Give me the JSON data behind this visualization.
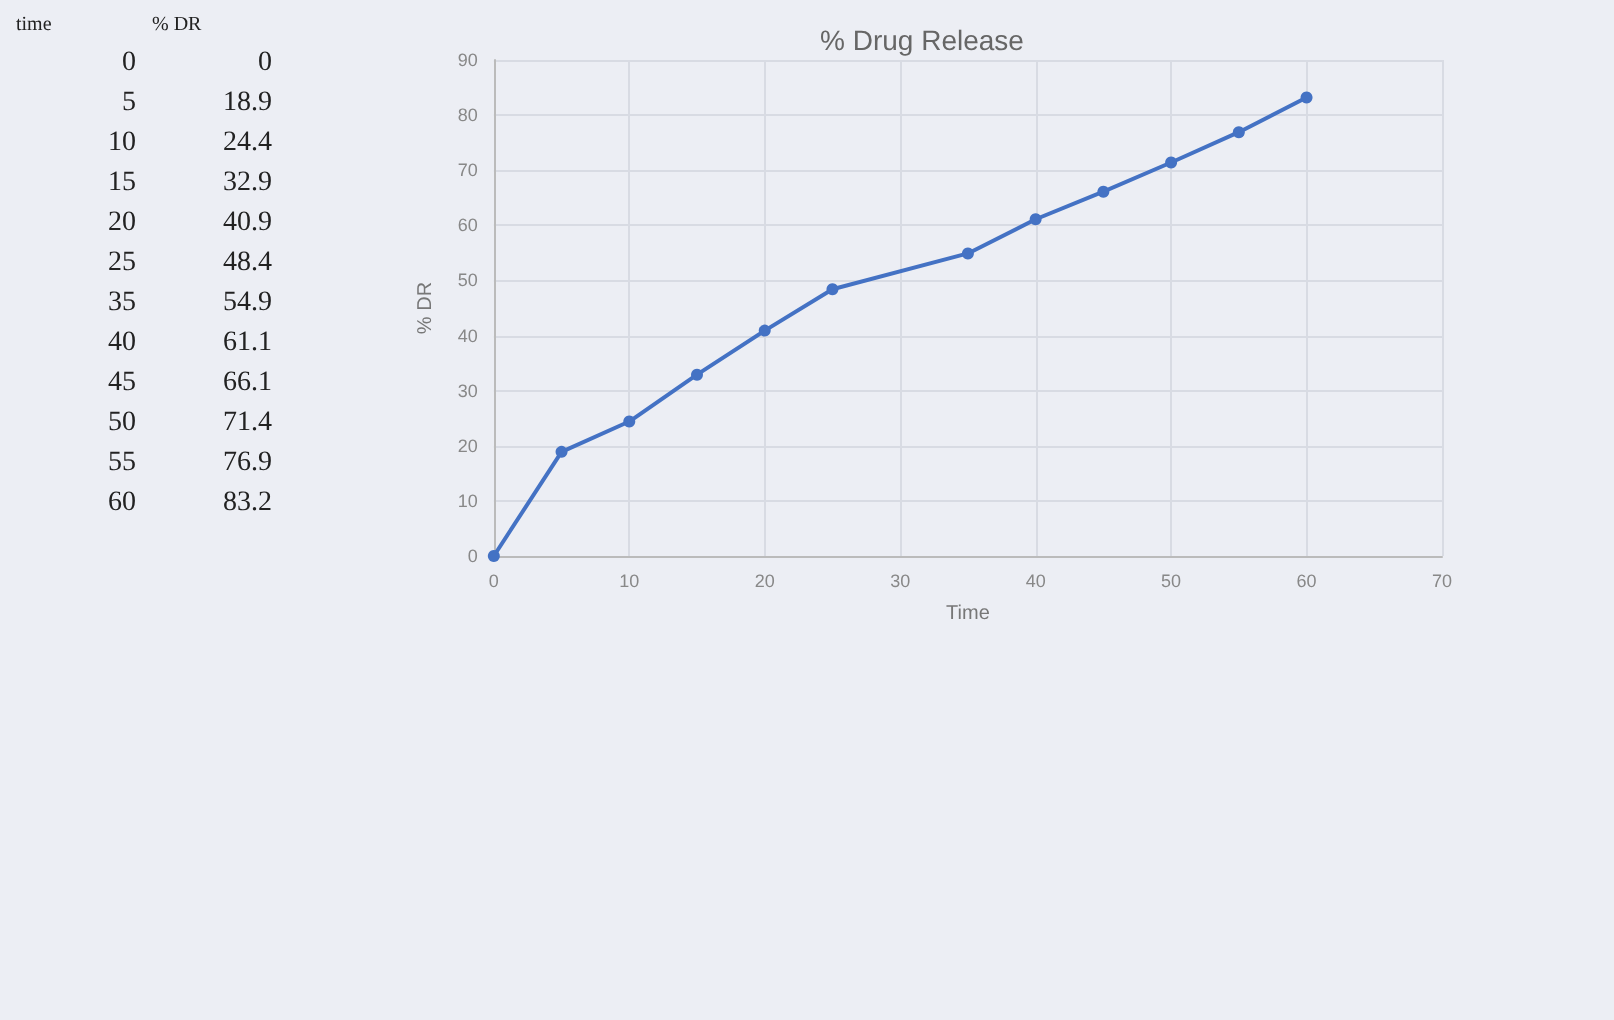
{
  "chart_data": [
    {
      "type": "other",
      "xlabel": "time",
      "ylabel": "% DR",
      "categories": [
        "0",
        "5",
        "10",
        "15",
        "20",
        "25",
        "35",
        "40",
        "45",
        "50",
        "55",
        "60"
      ],
      "values": [
        0,
        18.9,
        24.4,
        32.9,
        40.9,
        48.4,
        54.9,
        61.1,
        66.1,
        71.4,
        76.9,
        83.2
      ],
      "data_labels": true
    },
    {
      "type": "line",
      "title": "% Drug Release",
      "xlabel": "Time",
      "ylabel": "% DR",
      "x": [
        0,
        5,
        10,
        15,
        20,
        25,
        35,
        40,
        45,
        50,
        55,
        60
      ],
      "series": [
        {
          "color": "#4472c4",
          "values": [
            0,
            18.9,
            24.4,
            32.9,
            40.9,
            48.4,
            54.9,
            61.1,
            66.1,
            71.4,
            76.9,
            83.2
          ]
        }
      ],
      "xlim": [
        0,
        70
      ],
      "xticks": [
        0,
        10,
        20,
        30,
        40,
        50,
        60,
        70
      ],
      "ylim": [
        0,
        90
      ],
      "yticks": [
        0,
        10,
        20,
        30,
        40,
        50,
        60,
        70,
        80,
        90
      ],
      "grid": true,
      "marker": "circle",
      "line_style": "solid"
    }
  ]
}
